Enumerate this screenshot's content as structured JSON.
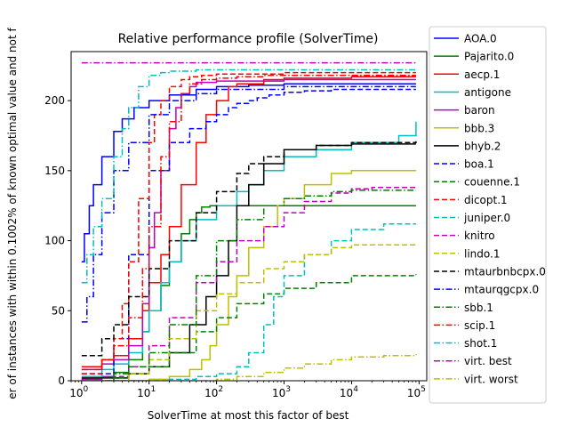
{
  "chart_data": {
    "type": "line",
    "title": "Relative performance profile (SolverTime)",
    "xlabel": "SolverTime at most this factor of best",
    "ylabel": "er of instances with within 0.1002% of known optimal value and not f",
    "xscale": "log",
    "xlim": [
      0.7,
      130000
    ],
    "ylim": [
      0,
      235
    ],
    "xticks": [
      {
        "value": 1,
        "base": "10",
        "exp": "0"
      },
      {
        "value": 10,
        "base": "10",
        "exp": "1"
      },
      {
        "value": 100,
        "base": "10",
        "exp": "2"
      },
      {
        "value": 1000,
        "base": "10",
        "exp": "3"
      },
      {
        "value": 10000,
        "base": "10",
        "exp": "4"
      },
      {
        "value": 100000,
        "base": "10",
        "exp": "5"
      }
    ],
    "yticks": [
      0,
      50,
      100,
      150,
      200
    ],
    "grid": false,
    "legend_position": "outside-right",
    "series": [
      {
        "name": "AOA.0",
        "color": "#0000ff",
        "dash": "solid",
        "x": [
          1,
          1.1,
          1.3,
          1.5,
          2,
          3,
          4,
          6,
          10,
          20,
          50,
          100,
          300,
          1000,
          10000,
          90000
        ],
        "y": [
          85,
          105,
          125,
          140,
          160,
          178,
          187,
          195,
          200,
          204,
          208,
          210,
          211,
          212,
          212,
          212
        ]
      },
      {
        "name": "Pajarito.0",
        "color": "#008000",
        "dash": "solid",
        "x": [
          1,
          2,
          3,
          5,
          8,
          10,
          15,
          20,
          30,
          40,
          50,
          60,
          80,
          90000
        ],
        "y": [
          1,
          3,
          6,
          15,
          35,
          50,
          68,
          85,
          105,
          115,
          120,
          124,
          125,
          125
        ]
      },
      {
        "name": "aecp.1",
        "color": "#ff0000",
        "dash": "solid",
        "x": [
          1,
          2,
          3,
          5,
          8,
          10,
          15,
          20,
          30,
          50,
          70,
          100,
          150,
          200,
          500,
          1000,
          10000,
          90000
        ],
        "y": [
          10,
          15,
          18,
          30,
          50,
          70,
          90,
          110,
          140,
          170,
          190,
          200,
          210,
          212,
          215,
          216,
          217,
          217
        ]
      },
      {
        "name": "antigone",
        "color": "#00bfbf",
        "dash": "solid",
        "x": [
          1,
          2,
          3,
          5,
          8,
          10,
          15,
          20,
          30,
          50,
          100,
          200,
          300,
          500,
          1000,
          3000,
          10000,
          50000,
          90000
        ],
        "y": [
          3,
          8,
          12,
          20,
          35,
          50,
          70,
          85,
          100,
          115,
          125,
          135,
          140,
          150,
          160,
          165,
          170,
          175,
          185
        ]
      },
      {
        "name": "baron",
        "color": "#bf00bf",
        "dash": "solid",
        "x": [
          1,
          2,
          3,
          5,
          8,
          10,
          12,
          15,
          20,
          25,
          30,
          40,
          50,
          100,
          1000,
          90000
        ],
        "y": [
          8,
          12,
          15,
          25,
          55,
          95,
          120,
          150,
          180,
          195,
          205,
          210,
          213,
          214,
          215,
          215
        ]
      },
      {
        "name": "bbb.3",
        "color": "#bfbf00",
        "dash": "solid",
        "x": [
          1,
          10,
          20,
          40,
          60,
          80,
          100,
          150,
          200,
          300,
          500,
          800,
          1000,
          2000,
          5000,
          10000,
          90000
        ],
        "y": [
          0,
          1,
          3,
          8,
          15,
          25,
          40,
          60,
          75,
          95,
          110,
          125,
          130,
          140,
          148,
          150,
          150
        ]
      },
      {
        "name": "bhyb.2",
        "color": "#000000",
        "dash": "solid",
        "x": [
          1,
          5,
          10,
          20,
          40,
          70,
          100,
          150,
          200,
          300,
          500,
          1000,
          3000,
          10000,
          90000
        ],
        "y": [
          2,
          5,
          10,
          20,
          40,
          60,
          75,
          100,
          125,
          140,
          155,
          165,
          168,
          169,
          169
        ]
      },
      {
        "name": "boa.1",
        "color": "#0000ff",
        "dash": "dashed",
        "x": [
          1,
          3,
          5,
          10,
          20,
          40,
          70,
          100,
          150,
          200,
          300,
          400,
          600,
          1000,
          2000,
          5000,
          10000,
          90000
        ],
        "y": [
          5,
          30,
          90,
          150,
          170,
          180,
          185,
          190,
          195,
          198,
          200,
          202,
          204,
          206,
          207,
          208,
          208,
          208
        ]
      },
      {
        "name": "couenne.1",
        "color": "#008000",
        "dash": "dashed",
        "x": [
          1,
          3,
          5,
          10,
          20,
          50,
          100,
          200,
          500,
          1000,
          3000,
          10000,
          90000
        ],
        "y": [
          0,
          2,
          5,
          10,
          20,
          35,
          45,
          55,
          62,
          66,
          70,
          75,
          76
        ]
      },
      {
        "name": "dicopt.1",
        "color": "#ff0000",
        "dash": "dashed",
        "x": [
          1,
          2,
          3,
          4,
          5,
          7,
          10,
          12,
          15,
          20,
          30,
          40,
          60,
          100,
          1000,
          90000
        ],
        "y": [
          5,
          15,
          30,
          55,
          85,
          130,
          170,
          190,
          200,
          210,
          215,
          217,
          218,
          219,
          220,
          220
        ]
      },
      {
        "name": "juniper.0",
        "color": "#00bfbf",
        "dash": "dashed",
        "x": [
          1,
          20,
          50,
          100,
          200,
          300,
          500,
          700,
          1000,
          2000,
          5000,
          10000,
          30000,
          90000
        ],
        "y": [
          0,
          1,
          3,
          5,
          10,
          20,
          40,
          60,
          75,
          90,
          100,
          108,
          112,
          112
        ]
      },
      {
        "name": "knitro",
        "color": "#bf00bf",
        "dash": "dashed",
        "x": [
          1,
          2,
          5,
          10,
          20,
          50,
          100,
          200,
          500,
          1000,
          2000,
          5000,
          10000,
          20000,
          90000
        ],
        "y": [
          1,
          3,
          10,
          25,
          45,
          70,
          85,
          100,
          110,
          120,
          128,
          134,
          137,
          138,
          138
        ]
      },
      {
        "name": "lindo.1",
        "color": "#bfbf00",
        "dash": "dashed",
        "x": [
          1,
          5,
          10,
          20,
          50,
          100,
          200,
          500,
          1000,
          2000,
          5000,
          10000,
          90000
        ],
        "y": [
          0,
          5,
          15,
          30,
          50,
          62,
          70,
          80,
          85,
          90,
          95,
          97,
          98
        ]
      },
      {
        "name": "mtaurbnbcpx.0",
        "color": "#000000",
        "dash": "dashed",
        "x": [
          1,
          2,
          3,
          5,
          10,
          20,
          50,
          100,
          200,
          300,
          500,
          1000,
          3000,
          10000,
          90000
        ],
        "y": [
          18,
          30,
          40,
          60,
          80,
          100,
          120,
          135,
          148,
          155,
          160,
          165,
          168,
          170,
          171
        ]
      },
      {
        "name": "mtaurqgcpx.0",
        "color": "#0000ff",
        "dash": "dashdot",
        "x": [
          1,
          1.2,
          1.5,
          2,
          3,
          5,
          10,
          20,
          50,
          100,
          1000,
          90000
        ],
        "y": [
          42,
          60,
          90,
          120,
          150,
          170,
          190,
          200,
          205,
          208,
          210,
          210
        ]
      },
      {
        "name": "sbb.1",
        "color": "#008000",
        "dash": "dashdot",
        "x": [
          1,
          3,
          5,
          10,
          20,
          50,
          100,
          200,
          500,
          1000,
          2000,
          5000,
          10000,
          90000
        ],
        "y": [
          0,
          5,
          10,
          20,
          40,
          75,
          100,
          115,
          125,
          130,
          132,
          135,
          136,
          136
        ]
      },
      {
        "name": "scip.1",
        "color": "#ff0000",
        "dash": "dashdot",
        "x": [
          1,
          2,
          3,
          5,
          8,
          10,
          15,
          20,
          30,
          40,
          60,
          100,
          200,
          500,
          1000,
          90000
        ],
        "y": [
          8,
          15,
          25,
          45,
          80,
          110,
          160,
          185,
          205,
          212,
          215,
          216,
          217,
          218,
          218,
          218
        ]
      },
      {
        "name": "shot.1",
        "color": "#00bfbf",
        "dash": "dashdot",
        "x": [
          1,
          1.2,
          1.5,
          2,
          3,
          4,
          5,
          7,
          10,
          15,
          20,
          50,
          100,
          1000,
          90000
        ],
        "y": [
          70,
          90,
          110,
          130,
          160,
          180,
          195,
          210,
          218,
          220,
          221,
          222,
          222,
          222,
          222
        ]
      },
      {
        "name": "virt. best",
        "color": "#bf00bf",
        "dash": "dashdot",
        "x": [
          1,
          90000
        ],
        "y": [
          227,
          227
        ]
      },
      {
        "name": "virt. worst",
        "color": "#bfbf00",
        "dash": "dashdot",
        "x": [
          1,
          50,
          100,
          200,
          500,
          1000,
          2000,
          5000,
          10000,
          30000,
          90000
        ],
        "y": [
          0,
          0,
          1,
          3,
          6,
          9,
          12,
          15,
          17,
          18,
          19
        ]
      }
    ]
  }
}
